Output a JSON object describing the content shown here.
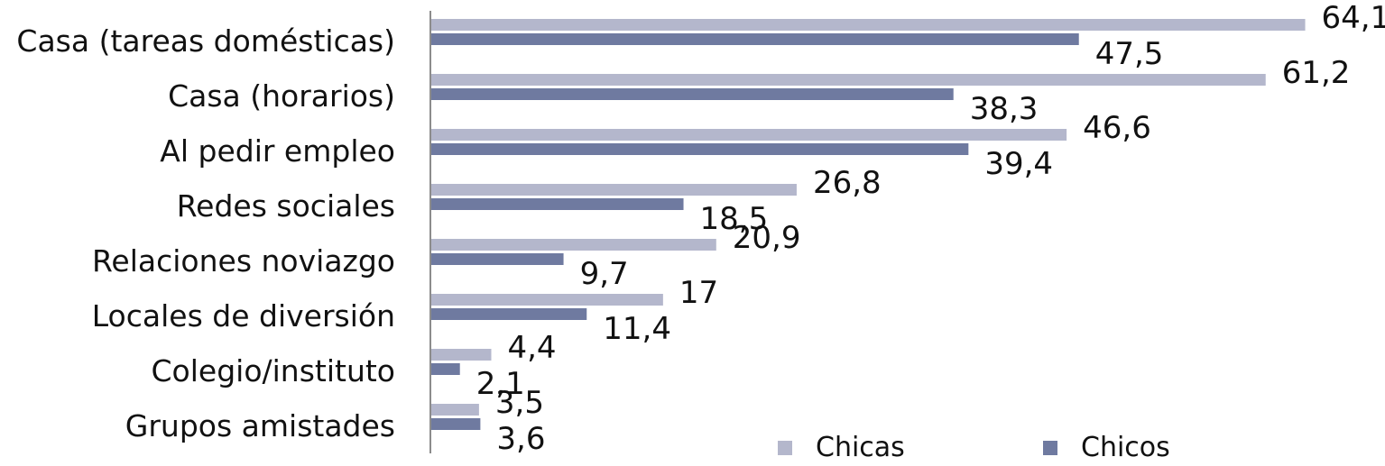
{
  "chart_data": {
    "type": "bar",
    "orientation": "horizontal",
    "categories": [
      "Casa (tareas domésticas)",
      "Casa (horarios)",
      "Al pedir empleo",
      "Redes sociales",
      "Relaciones noviazgo",
      "Locales de diversión",
      "Colegio/instituto",
      "Grupos amistades"
    ],
    "series": [
      {
        "name": "Chicas",
        "color": "#b4b7cc",
        "values": [
          64.1,
          61.2,
          46.6,
          26.8,
          20.9,
          17,
          4.4,
          3.5
        ],
        "labels": [
          "64,1",
          "61,2",
          "46,6",
          "26,8",
          "20,9",
          "17",
          "4,4",
          "3,5"
        ]
      },
      {
        "name": "Chicos",
        "color": "#6f7aa0",
        "values": [
          47.5,
          38.3,
          39.4,
          18.5,
          9.7,
          11.4,
          2.1,
          3.6
        ],
        "labels": [
          "47,5",
          "38,3",
          "39,4",
          "18,5",
          "9,7",
          "11,4",
          "2,1",
          "3,6"
        ]
      }
    ],
    "xlim": [
      0,
      69
    ],
    "grid": false,
    "legend_position": "bottom"
  }
}
